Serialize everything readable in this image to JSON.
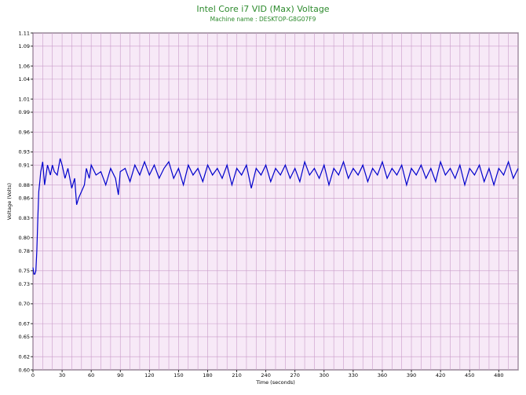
{
  "header": {
    "title": "Intel Core i7 VID (Max) Voltage",
    "subtitle": "Machine name : DESKTOP-G8G07F9"
  },
  "chart_data": {
    "type": "line",
    "title": "Intel Core i7 VID (Max) Voltage",
    "subtitle": "Machine name : DESKTOP-G8G07F9",
    "xlabel": "Time (seconds)",
    "ylabel": "Voltage (Volts)",
    "xlim": [
      0,
      500
    ],
    "ylim": [
      0.6,
      1.11
    ],
    "x_ticks": [
      0,
      30,
      60,
      90,
      120,
      150,
      180,
      210,
      240,
      270,
      300,
      330,
      360,
      390,
      420,
      450,
      480
    ],
    "y_ticks": [
      0.6,
      0.62,
      0.65,
      0.67,
      0.7,
      0.73,
      0.75,
      0.78,
      0.8,
      0.83,
      0.86,
      0.88,
      0.91,
      0.93,
      0.96,
      0.99,
      1.01,
      1.04,
      1.06,
      1.09,
      1.11
    ],
    "grid": true,
    "background_color": "#f7e9f7",
    "grid_color": "#c99cc9",
    "line_color": "#0000cc",
    "series": [
      {
        "name": "",
        "x": [
          0,
          1,
          2,
          3,
          4,
          5,
          6,
          7,
          8,
          10,
          12,
          15,
          18,
          20,
          22,
          25,
          28,
          30,
          33,
          36,
          40,
          43,
          45,
          47,
          50,
          53,
          55,
          58,
          60,
          65,
          70,
          75,
          80,
          85,
          88,
          90,
          95,
          100,
          105,
          110,
          115,
          120,
          125,
          130,
          135,
          140,
          145,
          150,
          155,
          160,
          165,
          170,
          175,
          180,
          185,
          190,
          195,
          200,
          205,
          210,
          215,
          220,
          225,
          230,
          235,
          240,
          245,
          250,
          255,
          260,
          265,
          270,
          275,
          280,
          285,
          290,
          295,
          300,
          305,
          310,
          315,
          320,
          325,
          330,
          335,
          340,
          345,
          350,
          355,
          360,
          365,
          370,
          375,
          380,
          385,
          390,
          395,
          400,
          405,
          410,
          415,
          420,
          425,
          430,
          435,
          440,
          445,
          450,
          455,
          460,
          465,
          470,
          475,
          480,
          485,
          490,
          495,
          500
        ],
        "y": [
          0.755,
          0.745,
          0.745,
          0.75,
          0.78,
          0.83,
          0.87,
          0.885,
          0.9,
          0.915,
          0.88,
          0.91,
          0.895,
          0.91,
          0.9,
          0.895,
          0.92,
          0.91,
          0.89,
          0.905,
          0.875,
          0.89,
          0.85,
          0.86,
          0.87,
          0.88,
          0.905,
          0.89,
          0.91,
          0.895,
          0.9,
          0.88,
          0.905,
          0.89,
          0.865,
          0.9,
          0.905,
          0.885,
          0.91,
          0.895,
          0.915,
          0.895,
          0.91,
          0.89,
          0.905,
          0.915,
          0.89,
          0.905,
          0.88,
          0.91,
          0.895,
          0.905,
          0.885,
          0.91,
          0.895,
          0.905,
          0.89,
          0.91,
          0.88,
          0.905,
          0.895,
          0.91,
          0.875,
          0.905,
          0.895,
          0.91,
          0.885,
          0.905,
          0.895,
          0.91,
          0.89,
          0.905,
          0.885,
          0.915,
          0.895,
          0.905,
          0.89,
          0.91,
          0.88,
          0.905,
          0.895,
          0.915,
          0.89,
          0.905,
          0.895,
          0.91,
          0.885,
          0.905,
          0.895,
          0.915,
          0.89,
          0.905,
          0.895,
          0.91,
          0.88,
          0.905,
          0.895,
          0.91,
          0.89,
          0.905,
          0.885,
          0.915,
          0.895,
          0.905,
          0.89,
          0.91,
          0.88,
          0.905,
          0.895,
          0.91,
          0.885,
          0.905,
          0.88,
          0.905,
          0.895,
          0.915,
          0.89,
          0.905
        ]
      }
    ]
  }
}
